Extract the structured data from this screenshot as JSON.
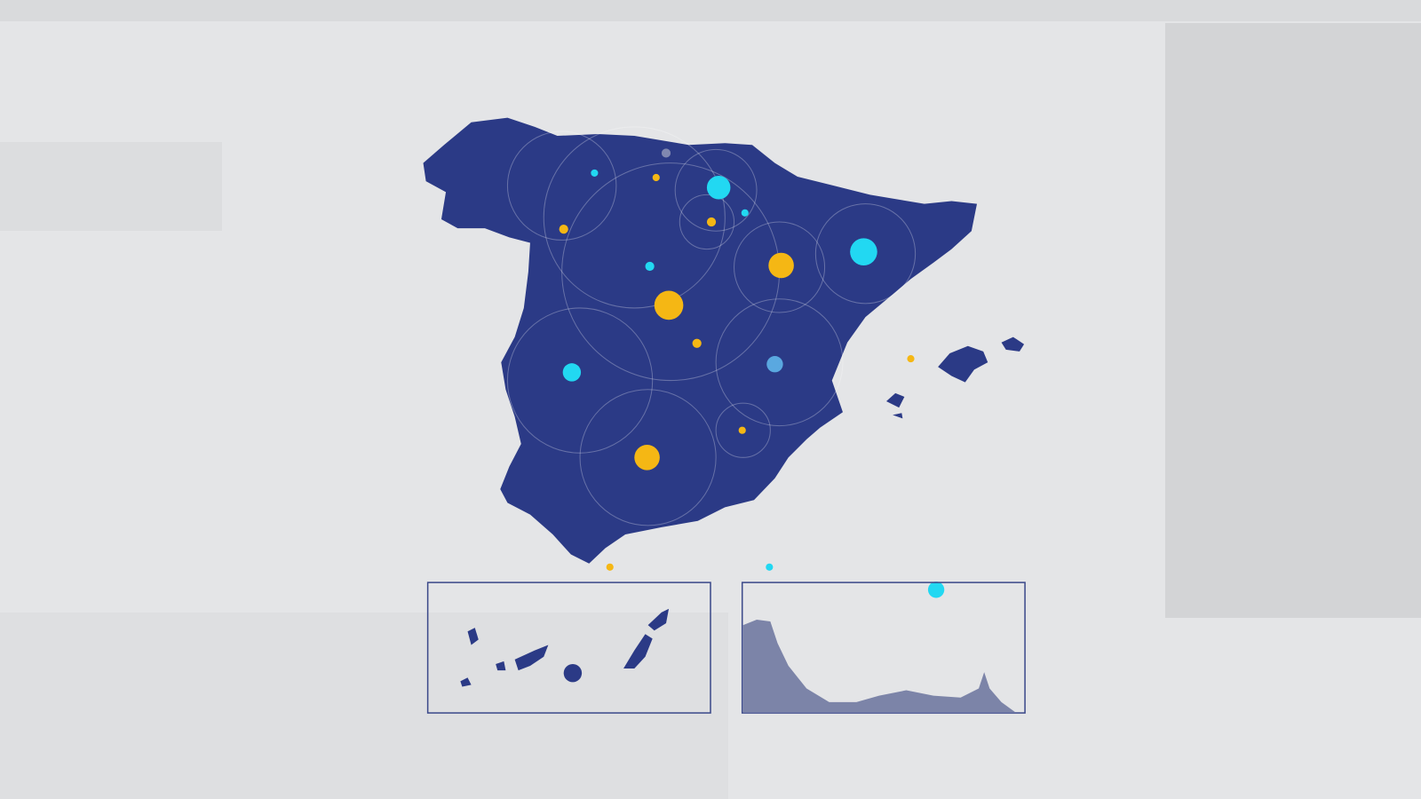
{
  "map": {
    "region": "Spain",
    "land_color": "#2b3a86",
    "inset_border_color": "#3c4a8a",
    "inset_fill_color": "#7c84a8",
    "background_color": "#e4e5e7",
    "marker_colors": {
      "cyan": "#22d8f2",
      "yellow": "#f5b714",
      "light_blue": "#5aa8e0",
      "grey": "#8088b0"
    },
    "insets": [
      "canary-islands",
      "ceuta-melilla-coast"
    ]
  }
}
